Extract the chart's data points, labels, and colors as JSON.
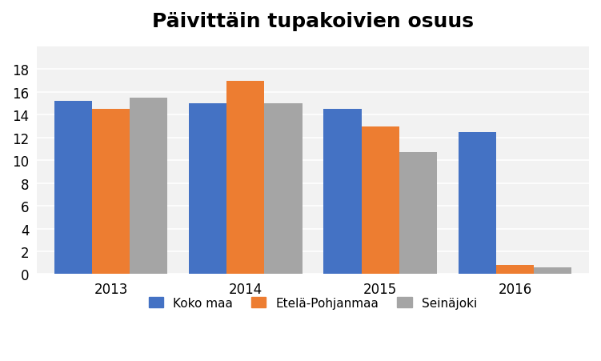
{
  "title": "Päivittäin tupakoivien osuus",
  "categories": [
    "2013",
    "2014",
    "2015",
    "2016"
  ],
  "series": [
    {
      "name": "Koko maa",
      "values": [
        15.2,
        15.0,
        14.5,
        12.5
      ],
      "color": "#4472C4"
    },
    {
      "name": "Etelä-Pohjanmaa",
      "values": [
        14.5,
        17.0,
        13.0,
        0.8
      ],
      "color": "#ED7D31"
    },
    {
      "name": "Seinäjoki",
      "values": [
        15.5,
        15.0,
        10.7,
        0.6
      ],
      "color": "#A5A5A5"
    }
  ],
  "ylim": [
    0,
    20
  ],
  "yticks": [
    0,
    2,
    4,
    6,
    8,
    10,
    12,
    14,
    16,
    18
  ],
  "bar_width": 0.28,
  "title_fontsize": 18,
  "axis_fontsize": 12,
  "legend_fontsize": 11,
  "plot_bg_color": "#F2F2F2",
  "figure_bg_color": "#FFFFFF",
  "grid_color": "#FFFFFF"
}
